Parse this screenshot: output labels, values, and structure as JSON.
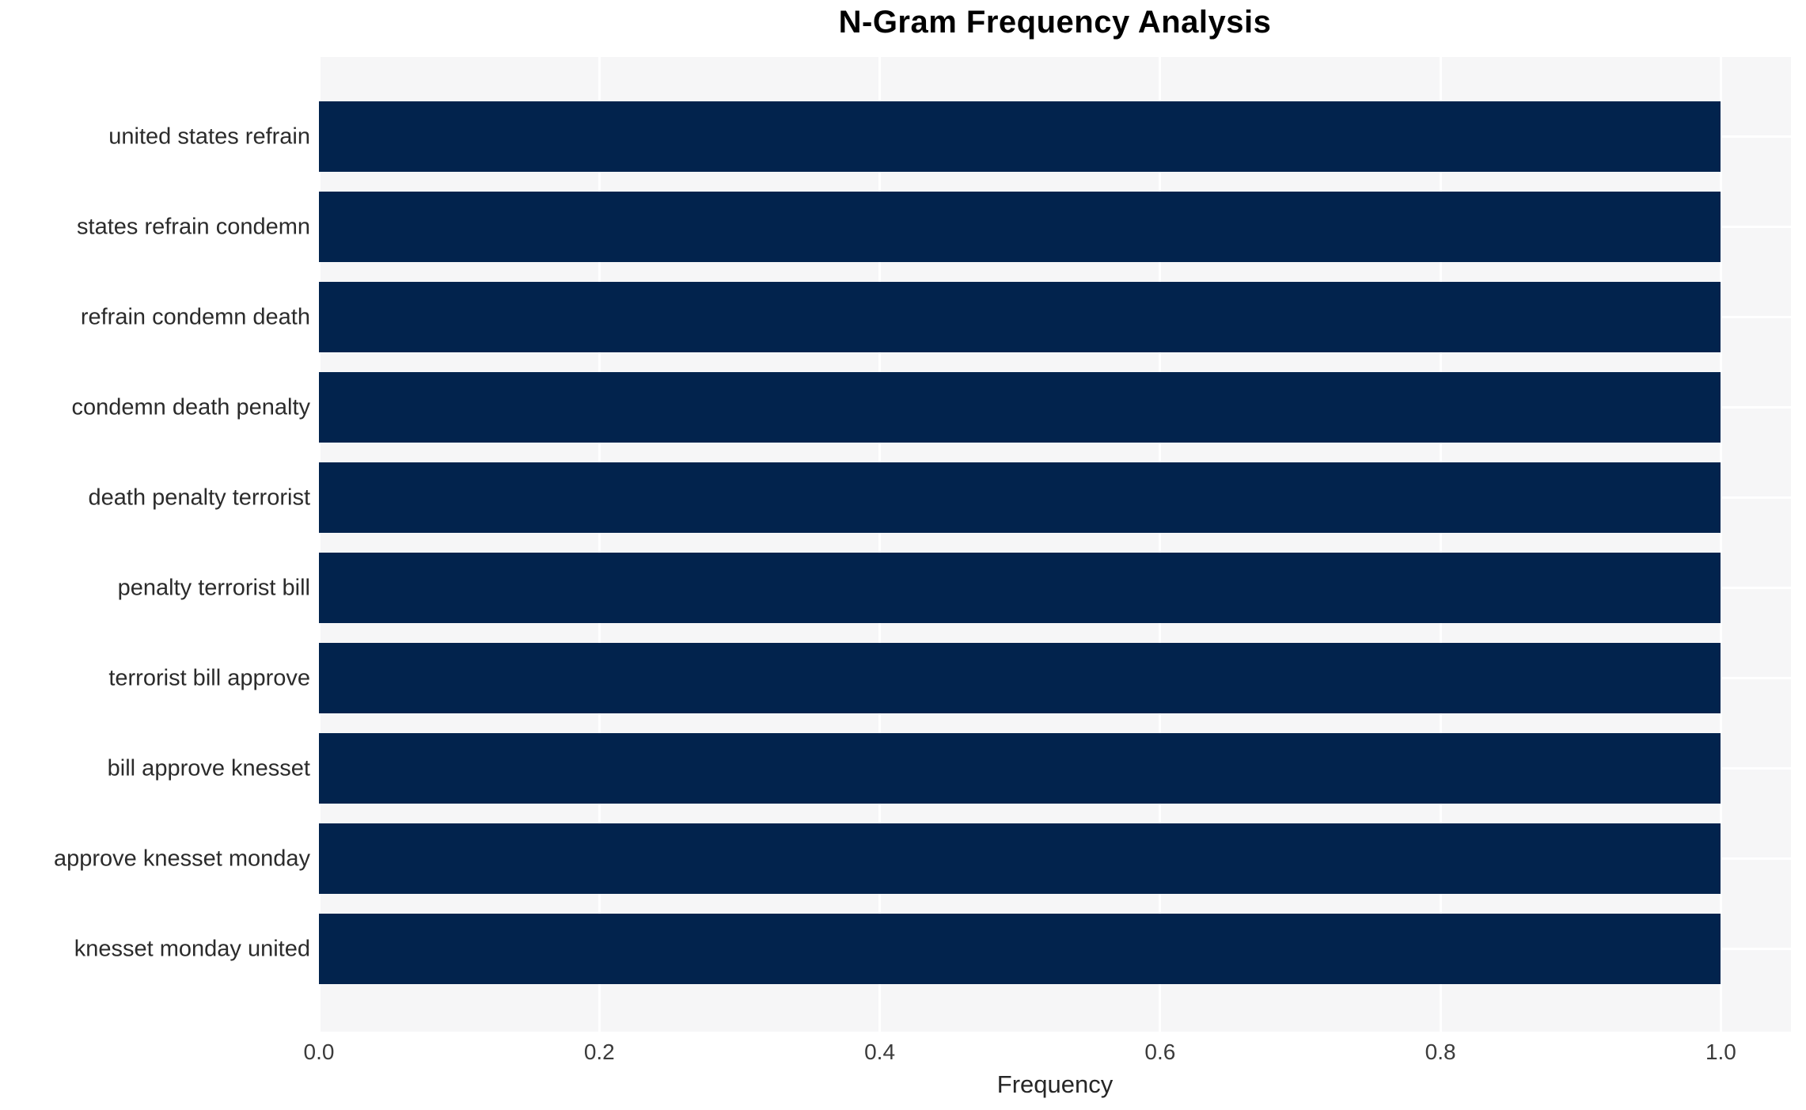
{
  "chart_data": {
    "type": "bar",
    "orientation": "horizontal",
    "title": "N-Gram Frequency Analysis",
    "xlabel": "Frequency",
    "ylabel": "",
    "categories": [
      "united states refrain",
      "states refrain condemn",
      "refrain condemn death",
      "condemn death penalty",
      "death penalty terrorist",
      "penalty terrorist bill",
      "terrorist bill approve",
      "bill approve knesset",
      "approve knesset monday",
      "knesset monday united"
    ],
    "values": [
      1.0,
      1.0,
      1.0,
      1.0,
      1.0,
      1.0,
      1.0,
      1.0,
      1.0,
      1.0
    ],
    "xlim": [
      0,
      1.05
    ],
    "xticks": [
      0.0,
      0.2,
      0.4,
      0.6,
      0.8,
      1.0
    ],
    "xtick_labels": [
      "0.0",
      "0.2",
      "0.4",
      "0.6",
      "0.8",
      "1.0"
    ],
    "grid": true,
    "legend": false,
    "colors": {
      "bar": "#02234d",
      "plot_background": "#f6f6f7",
      "grid_line": "#ffffff",
      "title_text": "#000000",
      "tick_text": "#3b3b3b",
      "label_text": "#2b2b2b"
    }
  }
}
